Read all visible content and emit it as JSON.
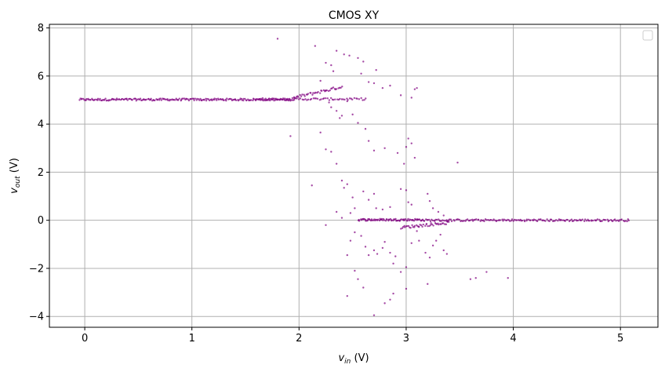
{
  "chart_data": {
    "type": "scatter",
    "title": "CMOS XY",
    "xlabel": {
      "var": "v",
      "sub": "in",
      "unit": " (V)"
    },
    "ylabel": {
      "var": "v",
      "sub": "out",
      "unit": " (V)"
    },
    "xlim": [
      -0.33,
      5.35
    ],
    "ylim": [
      -4.45,
      8.15
    ],
    "xticks": [
      0,
      1,
      2,
      3,
      4,
      5
    ],
    "yticks": [
      -4,
      -2,
      0,
      2,
      4,
      6,
      8
    ],
    "grid": true,
    "legend": "top-right, empty",
    "point_color": "#800080",
    "bands": [
      {
        "x_start": -0.05,
        "x_end": 1.95,
        "y": 5.02,
        "count": 230
      },
      {
        "x_start": 1.6,
        "x_end": 2.62,
        "y": 5.04,
        "count": 70
      },
      {
        "x_start": 1.95,
        "x_end": 2.4,
        "y_start": 5.1,
        "y_end": 5.55,
        "count": 40
      },
      {
        "x_start": 2.55,
        "x_end": 3.15,
        "y": 0.02,
        "count": 80
      },
      {
        "x_start": 3.15,
        "x_end": 5.08,
        "y": 0.0,
        "count": 180
      },
      {
        "x_start": 2.95,
        "x_end": 3.4,
        "y_start": -0.3,
        "y_end": -0.1,
        "count": 45
      }
    ],
    "points": [
      [
        1.8,
        7.55
      ],
      [
        2.15,
        7.25
      ],
      [
        2.25,
        6.55
      ],
      [
        2.3,
        6.45
      ],
      [
        2.32,
        6.2
      ],
      [
        2.35,
        7.05
      ],
      [
        2.42,
        6.9
      ],
      [
        2.47,
        6.85
      ],
      [
        2.55,
        6.75
      ],
      [
        2.58,
        6.1
      ],
      [
        2.6,
        6.6
      ],
      [
        2.65,
        5.75
      ],
      [
        2.7,
        5.7
      ],
      [
        2.72,
        6.25
      ],
      [
        2.78,
        5.5
      ],
      [
        2.85,
        5.6
      ],
      [
        2.95,
        5.2
      ],
      [
        3.05,
        5.1
      ],
      [
        3.08,
        5.45
      ],
      [
        3.1,
        5.5
      ],
      [
        2.2,
        5.8
      ],
      [
        2.25,
        5.4
      ],
      [
        2.28,
        4.9
      ],
      [
        2.3,
        4.7
      ],
      [
        2.35,
        4.55
      ],
      [
        2.38,
        4.25
      ],
      [
        2.4,
        4.35
      ],
      [
        2.45,
        4.95
      ],
      [
        2.5,
        4.4
      ],
      [
        2.55,
        4.05
      ],
      [
        2.62,
        3.8
      ],
      [
        2.65,
        3.3
      ],
      [
        2.7,
        2.9
      ],
      [
        2.8,
        3.0
      ],
      [
        2.92,
        2.8
      ],
      [
        2.98,
        2.35
      ],
      [
        3.0,
        3.05
      ],
      [
        3.02,
        3.4
      ],
      [
        3.05,
        3.2
      ],
      [
        3.08,
        2.6
      ],
      [
        1.92,
        3.5
      ],
      [
        2.2,
        3.65
      ],
      [
        2.25,
        2.95
      ],
      [
        2.3,
        2.85
      ],
      [
        2.35,
        2.35
      ],
      [
        2.4,
        1.65
      ],
      [
        2.45,
        1.5
      ],
      [
        2.42,
        1.35
      ],
      [
        2.5,
        0.95
      ],
      [
        2.6,
        1.2
      ],
      [
        2.65,
        0.85
      ],
      [
        2.7,
        1.1
      ],
      [
        2.72,
        0.5
      ],
      [
        2.78,
        0.45
      ],
      [
        2.85,
        0.55
      ],
      [
        2.95,
        1.3
      ],
      [
        3.0,
        1.25
      ],
      [
        3.02,
        0.75
      ],
      [
        3.05,
        0.65
      ],
      [
        3.2,
        1.1
      ],
      [
        2.12,
        1.45
      ],
      [
        2.35,
        0.35
      ],
      [
        2.4,
        0.1
      ],
      [
        2.48,
        0.3
      ],
      [
        2.52,
        0.5
      ],
      [
        3.22,
        0.8
      ],
      [
        3.25,
        0.5
      ],
      [
        3.3,
        0.35
      ],
      [
        3.35,
        0.2
      ],
      [
        3.48,
        2.4
      ],
      [
        2.58,
        -0.65
      ],
      [
        2.52,
        -0.5
      ],
      [
        2.48,
        -0.85
      ],
      [
        2.45,
        -1.45
      ],
      [
        2.62,
        -1.1
      ],
      [
        2.65,
        -1.45
      ],
      [
        2.7,
        -1.25
      ],
      [
        2.73,
        -1.4
      ],
      [
        2.78,
        -1.15
      ],
      [
        2.8,
        -0.9
      ],
      [
        2.85,
        -1.35
      ],
      [
        2.88,
        -1.8
      ],
      [
        2.9,
        -1.5
      ],
      [
        2.95,
        -2.15
      ],
      [
        3.0,
        -1.95
      ],
      [
        3.05,
        -0.95
      ],
      [
        3.1,
        -0.45
      ],
      [
        3.12,
        -0.85
      ],
      [
        3.18,
        -1.35
      ],
      [
        3.22,
        -1.55
      ],
      [
        3.25,
        -1.05
      ],
      [
        3.28,
        -0.85
      ],
      [
        3.32,
        -0.6
      ],
      [
        3.35,
        -1.25
      ],
      [
        3.38,
        -1.4
      ],
      [
        3.2,
        -2.65
      ],
      [
        2.55,
        -2.45
      ],
      [
        2.52,
        -2.1
      ],
      [
        2.45,
        -3.15
      ],
      [
        2.6,
        -2.8
      ],
      [
        2.7,
        -3.95
      ],
      [
        2.8,
        -3.45
      ],
      [
        2.85,
        -3.3
      ],
      [
        2.88,
        -3.05
      ],
      [
        3.0,
        -2.85
      ],
      [
        3.6,
        -2.45
      ],
      [
        3.65,
        -2.4
      ],
      [
        3.75,
        -2.15
      ],
      [
        3.95,
        -2.4
      ],
      [
        2.25,
        -0.2
      ]
    ]
  }
}
